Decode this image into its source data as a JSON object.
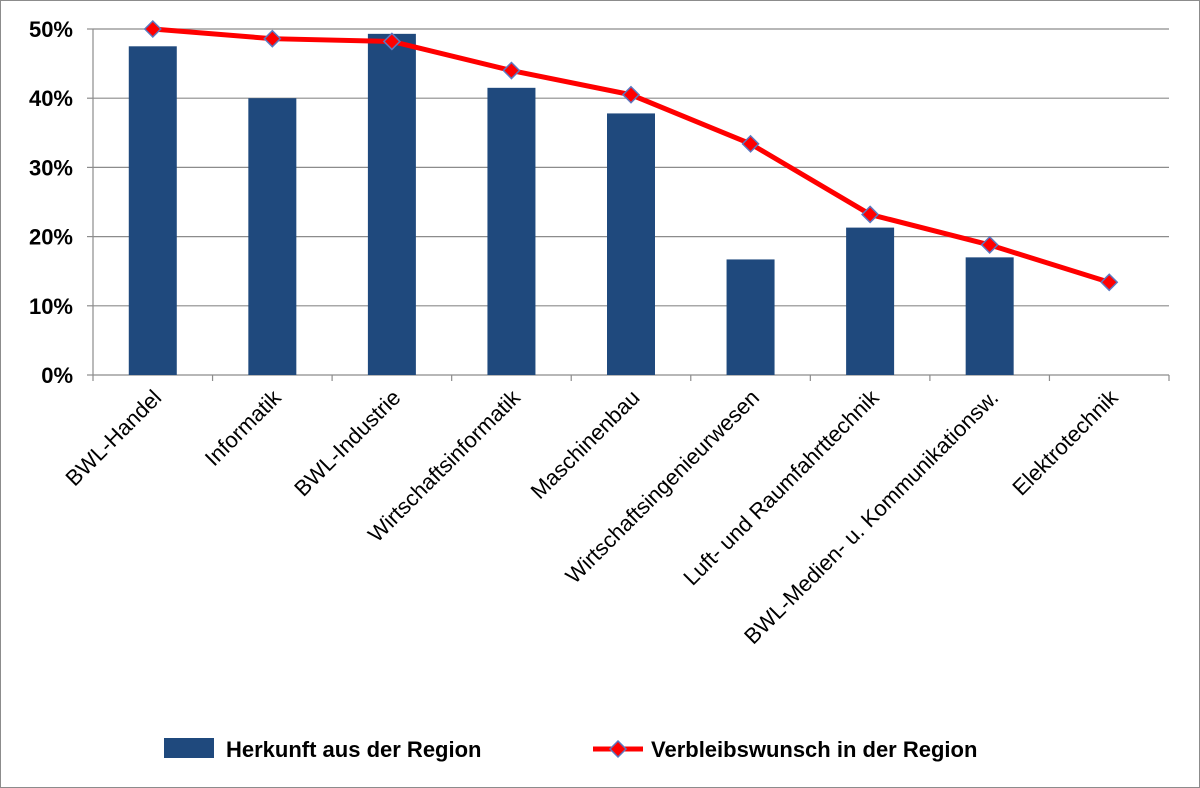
{
  "chart_data": {
    "type": "bar",
    "categories": [
      "BWL-Handel",
      "Informatik",
      "BWL-Industrie",
      "Wirtschaftsinformatik",
      "Maschinenbau",
      "Wirtschaftsingenieurwesen",
      "Luft- und Raumfahrttechnik",
      "BWL-Medien- u. Kommunikationsw.",
      "Elektrotechnik"
    ],
    "series": [
      {
        "name": "Herkunft aus der Region",
        "type": "bar",
        "color": "#1f497d",
        "values": [
          47.5,
          40.0,
          49.3,
          41.5,
          37.8,
          16.7,
          21.3,
          17.0,
          null
        ]
      },
      {
        "name": "Verbleibswunsch in der Region",
        "type": "line",
        "color": "#ff0000",
        "marker": "diamond",
        "values": [
          50.0,
          48.6,
          48.2,
          44.0,
          40.5,
          33.4,
          23.2,
          18.8,
          13.4
        ]
      }
    ],
    "y_ticks": [
      "0%",
      "10%",
      "20%",
      "30%",
      "40%",
      "50%"
    ],
    "ylim": [
      0,
      50
    ],
    "y_unit": "%",
    "grid": true,
    "legend_position": "bottom"
  }
}
